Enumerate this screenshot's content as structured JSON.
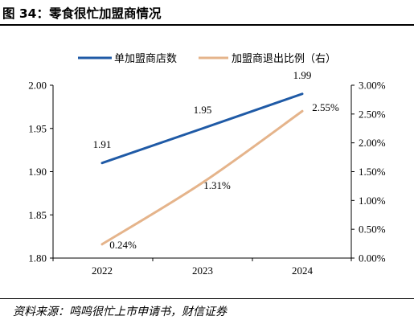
{
  "figure": {
    "title": "图 34：零食很忙加盟商情况",
    "source": "资料来源：鸣鸣很忙上市申请书，财信证券"
  },
  "chart_data": {
    "type": "line",
    "x": [
      "2022",
      "2023",
      "2024"
    ],
    "series": [
      {
        "name": "单加盟商店数",
        "axis": "left",
        "color": "#1f5aa6",
        "values": [
          1.91,
          1.95,
          1.99
        ],
        "labels": [
          "1.91",
          "1.95",
          "1.99"
        ]
      },
      {
        "name": "加盟商退出比例（右）",
        "axis": "right",
        "color": "#e5b48b",
        "values": [
          0.24,
          1.31,
          2.55
        ],
        "labels": [
          "0.24%",
          "1.31%",
          "2.55%"
        ]
      }
    ],
    "y_left": {
      "range": [
        1.8,
        2.0
      ],
      "ticks": [
        "1.80",
        "1.85",
        "1.90",
        "1.95",
        "2.00"
      ]
    },
    "y_right": {
      "range": [
        0,
        3.0
      ],
      "ticks": [
        "0.00%",
        "0.50%",
        "1.00%",
        "1.50%",
        "2.00%",
        "2.50%",
        "3.00%"
      ]
    },
    "grid": false,
    "legend": "top-center"
  }
}
